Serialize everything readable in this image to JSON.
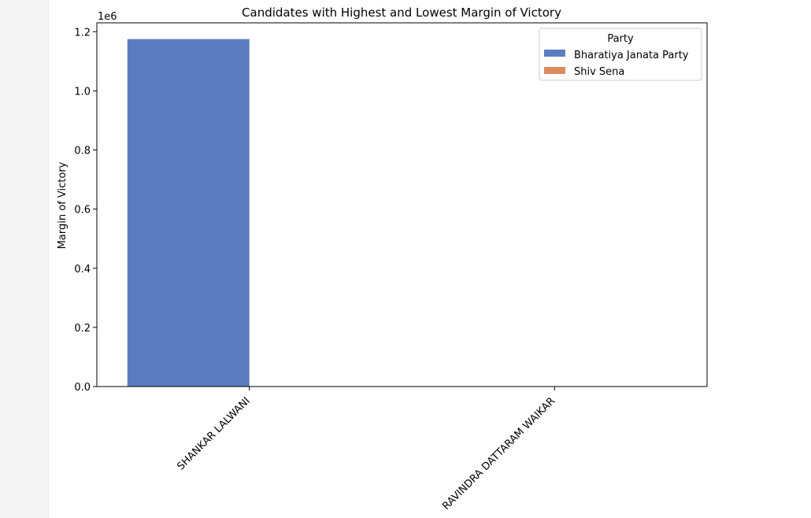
{
  "chart_data": {
    "type": "bar",
    "title": "Candidates with Highest and Lowest Margin of Victory",
    "xlabel": "",
    "ylabel": "Margin of Victory",
    "y_scale_label": "1e6",
    "ylim": [
      0,
      1.23
    ],
    "y_ticks": [
      0.0,
      0.2,
      0.4,
      0.6,
      0.8,
      1.0,
      1.2
    ],
    "y_tick_labels": [
      "0.0",
      "0.2",
      "0.4",
      "0.6",
      "0.8",
      "1.0",
      "1.2"
    ],
    "categories": [
      "SHANKAR LALWANI",
      "RAVINDRA DATTARAM WAIKAR"
    ],
    "series": [
      {
        "name": "Bharatiya Janata Party",
        "color": "#5b7dc0",
        "values": [
          1.175,
          0
        ]
      },
      {
        "name": "Shiv Sena",
        "color": "#dd8a5f",
        "values": [
          0,
          4.8e-05
        ]
      }
    ],
    "legend": {
      "title": "Party",
      "position": "top-right",
      "entries": [
        "Bharatiya Janata Party",
        "Shiv Sena"
      ]
    }
  }
}
